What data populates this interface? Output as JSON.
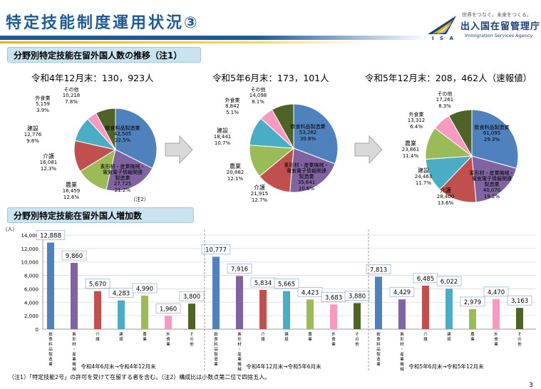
{
  "header": {
    "title": "特定技能制度運用状況③",
    "agency_tagline": "世界をつなぐ。未来をつくる。",
    "agency_name": "出入国在留管理庁",
    "agency_name_en": "Immigration Services Agency",
    "agency_abbr": "I S A",
    "brand_color": "#1f5a95"
  },
  "section1": {
    "title": "分野別特定技能在留外国人数の推移（注1）"
  },
  "section2": {
    "title": "分野別特定技能在留外国人増加数"
  },
  "footnote": "（注1）「特定技能2号」の許可を受けて在留する者を含む。（注2）構成比は小数点第二位で四捨五入。",
  "page_number": "3",
  "chart_data": [
    {
      "type": "pie",
      "title": "令和4年12月末：130，923人",
      "slices": [
        {
          "name": "飲食料品製造業",
          "value": 42505,
          "pct": "32.5%",
          "color": "#4f81bd"
        },
        {
          "name": "素形材・産業機械・電気電子情報関連製造業",
          "value": 27725,
          "pct": "21.2%",
          "color": "#8064a2"
        },
        {
          "name": "農業",
          "value": 16459,
          "pct": "12.6%",
          "color": "#9bbb59"
        },
        {
          "name": "介護",
          "value": 16081,
          "pct": "12.3%",
          "color": "#c0504d"
        },
        {
          "name": "建設",
          "value": 12776,
          "pct": "9.8%",
          "color": "#4bacc6"
        },
        {
          "name": "外食業",
          "value": 5159,
          "pct": "3.9%",
          "color": "#f79ac0"
        },
        {
          "name": "その他",
          "value": 10218,
          "pct": "7.8%",
          "color": "#4f6228"
        }
      ],
      "annotation": "（注2）"
    },
    {
      "type": "pie",
      "title": "令和5年6月末：173，101人",
      "slices": [
        {
          "name": "飲食料品製造業",
          "value": 53282,
          "pct": "30.8%",
          "color": "#4f81bd"
        },
        {
          "name": "素形材・産業機械・電気電子情報関連製造業",
          "value": 35641,
          "pct": "20.6%",
          "color": "#8064a2"
        },
        {
          "name": "介護",
          "value": 21915,
          "pct": "12.7%",
          "color": "#c0504d"
        },
        {
          "name": "農業",
          "value": 20882,
          "pct": "12.1%",
          "color": "#9bbb59"
        },
        {
          "name": "建設",
          "value": 18441,
          "pct": "10.7%",
          "color": "#4bacc6"
        },
        {
          "name": "外食業",
          "value": 8842,
          "pct": "5.1%",
          "color": "#f79ac0"
        },
        {
          "name": "その他",
          "value": 14098,
          "pct": "8.1%",
          "color": "#4f6228"
        }
      ]
    },
    {
      "type": "pie",
      "title": "令和5年12月末：208，462人（速報値）",
      "slices": [
        {
          "name": "飲食料品製造業",
          "value": 61095,
          "pct": "29.3%",
          "color": "#4f81bd"
        },
        {
          "name": "素形材・産業機械・電気電子情報関連製造業",
          "value": 40070,
          "pct": "19.2%",
          "color": "#8064a2"
        },
        {
          "name": "介護",
          "value": 28400,
          "pct": "13.6%",
          "color": "#c0504d"
        },
        {
          "name": "建設",
          "value": 24463,
          "pct": "11.7%",
          "color": "#4bacc6"
        },
        {
          "name": "農業",
          "value": 23861,
          "pct": "11.4%",
          "color": "#9bbb59"
        },
        {
          "name": "外食業",
          "value": 13312,
          "pct": "6.4%",
          "color": "#f79ac0"
        },
        {
          "name": "その他",
          "value": 17261,
          "pct": "8.3%",
          "color": "#4f6228"
        }
      ]
    },
    {
      "type": "bar",
      "ylabel": "（人）",
      "ylim": [
        0,
        14000
      ],
      "yticks": [
        0,
        2000,
        4000,
        6000,
        8000,
        10000,
        12000,
        14000
      ],
      "ytick_labels": [
        "0",
        "2,000",
        "4,000",
        "6,000",
        "8,000",
        "10,000",
        "12,000",
        "14,000"
      ],
      "grid": true,
      "groups": [
        {
          "label": "令和4年6月末→令和4年12月末",
          "bars": [
            {
              "category": "飲食料品製造業",
              "value": 12888,
              "label": "12,888",
              "color": "#4f81bd"
            },
            {
              "category": "素形材・産業機械・電気電子情報関連製造業",
              "value": 9860,
              "label": "9,860",
              "color": "#8064a2"
            },
            {
              "category": "介護",
              "value": 5670,
              "label": "5,670",
              "color": "#c0504d"
            },
            {
              "category": "建設",
              "value": 4283,
              "label": "4,283",
              "color": "#4bacc6"
            },
            {
              "category": "農業",
              "value": 4990,
              "label": "4,990",
              "color": "#9bbb59"
            },
            {
              "category": "外食業",
              "value": 1960,
              "label": "1,960",
              "color": "#f79ac0"
            },
            {
              "category": "その他",
              "value": 3800,
              "label": "3,800",
              "color": "#4f6228"
            }
          ]
        },
        {
          "label": "令和4年12月末→令和5年6月末",
          "bars": [
            {
              "category": "飲食料品製造業",
              "value": 10777,
              "label": "10,777",
              "color": "#4f81bd"
            },
            {
              "category": "素形材・産業機械・電気電子情報関連製造業",
              "value": 7916,
              "label": "7,916",
              "color": "#8064a2"
            },
            {
              "category": "介護",
              "value": 5834,
              "label": "5,834",
              "color": "#c0504d"
            },
            {
              "category": "建設",
              "value": 5665,
              "label": "5,665",
              "color": "#4bacc6"
            },
            {
              "category": "農業",
              "value": 4423,
              "label": "4,423",
              "color": "#9bbb59"
            },
            {
              "category": "外食業",
              "value": 3683,
              "label": "3,683",
              "color": "#f79ac0"
            },
            {
              "category": "その他",
              "value": 3880,
              "label": "3,880",
              "color": "#4f6228"
            }
          ]
        },
        {
          "label": "令和5年6月末→令和5年12月末",
          "bars": [
            {
              "category": "飲食料品製造業",
              "value": 7813,
              "label": "7,813",
              "color": "#4f81bd"
            },
            {
              "category": "素形材・産業機械・電気電子情報関連製造業",
              "value": 4429,
              "label": "4,429",
              "color": "#8064a2"
            },
            {
              "category": "介護",
              "value": 6485,
              "label": "6,485",
              "color": "#c0504d"
            },
            {
              "category": "建設",
              "value": 6022,
              "label": "6,022",
              "color": "#4bacc6"
            },
            {
              "category": "農業",
              "value": 2979,
              "label": "2,979",
              "color": "#9bbb59"
            },
            {
              "category": "外食業",
              "value": 4470,
              "label": "4,470",
              "color": "#f79ac0"
            },
            {
              "category": "その他",
              "value": 3163,
              "label": "3,163",
              "color": "#4f6228"
            }
          ]
        }
      ]
    }
  ]
}
